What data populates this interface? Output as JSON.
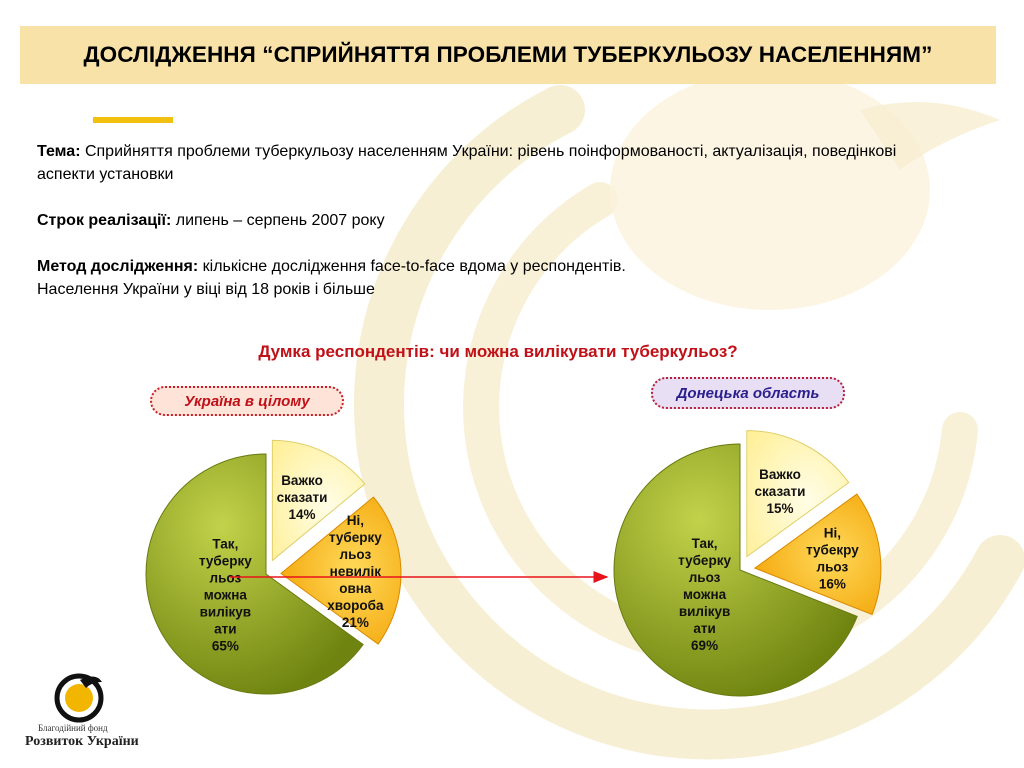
{
  "title": "ДОСЛІДЖЕННЯ “СПРИЙНЯТТЯ ПРОБЛЕМИ ТУБЕРКУЛЬОЗУ НАСЕЛЕННЯМ”",
  "info": {
    "topic_label": "Тема:",
    "topic_text": " Сприйняття проблеми туберкульозу населенням України: рівень поінформованості, актуалізація, поведінкові аспекти установки",
    "period_label": "Строк реалізації:",
    "period_text": " липень – серпень 2007 року",
    "method_label": "Метод дослідження:",
    "method_text": " кількісне дослідження face-to-face вдома у респондентів.",
    "method_line2": "Населення України у віці від 18 років і більше"
  },
  "question": "Думка респондентів: чи можна вилікувати туберкульоз?",
  "logo": {
    "caption_small": "Благодійний фонд",
    "caption_big": "Розвиток України"
  },
  "colors": {
    "yes": "#8fa31c",
    "no": "#f5a500",
    "hard": "#fff4a8",
    "arrow": "#e8141b",
    "title_bg": "#f9e2a7",
    "question": "#c01018"
  },
  "chart_data": [
    {
      "type": "pie",
      "title": "Україна в цілому",
      "slices": [
        {
          "label_lines": [
            "Так,",
            "туберку",
            "льоз",
            "можна",
            "вилікув",
            "ати",
            "65%"
          ],
          "value": 65
        },
        {
          "label_lines": [
            "Ні,",
            "туберку",
            "льоз",
            "невилік",
            "овна",
            "хвороба",
            "21%"
          ],
          "value": 21
        },
        {
          "label_lines": [
            "Важко",
            "сказати",
            "14%"
          ],
          "value": 14
        }
      ]
    },
    {
      "type": "pie",
      "title": "Донецька область",
      "slices": [
        {
          "label_lines": [
            "Так,",
            "туберку",
            "льоз",
            "можна",
            "вилікув",
            "ати",
            "69%"
          ],
          "value": 69
        },
        {
          "label_lines": [
            "Ні,",
            "тубекру",
            "льоз",
            "16%"
          ],
          "value": 16
        },
        {
          "label_lines": [
            "Важко",
            "сказати",
            "15%"
          ],
          "value": 15
        }
      ]
    }
  ]
}
